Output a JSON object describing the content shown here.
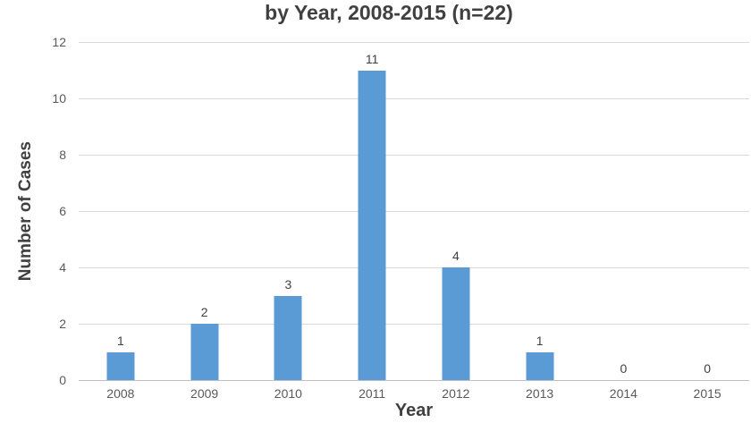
{
  "chart_data": {
    "type": "bar",
    "title": "by Year, 2008-2015 (n=22)",
    "xlabel": "Year",
    "ylabel": "Number of Cases",
    "categories": [
      "2008",
      "2009",
      "2010",
      "2011",
      "2012",
      "2013",
      "2014",
      "2015"
    ],
    "values": [
      1,
      2,
      3,
      11,
      4,
      1,
      0,
      0
    ],
    "data_labels_shown": true,
    "ylim": [
      0,
      12
    ],
    "yticks": [
      0,
      2,
      4,
      6,
      8,
      10,
      12
    ],
    "grid": "horizontal",
    "legend": "none"
  },
  "colors": {
    "bar": "#5b9bd5",
    "title_text": "#404040",
    "axis_title_text": "#404040",
    "tick_label_text": "#595959",
    "data_label_text": "#404040",
    "gridline": "#d9d9d9",
    "axis_line": "#bfbfbf",
    "background": "#ffffff"
  }
}
